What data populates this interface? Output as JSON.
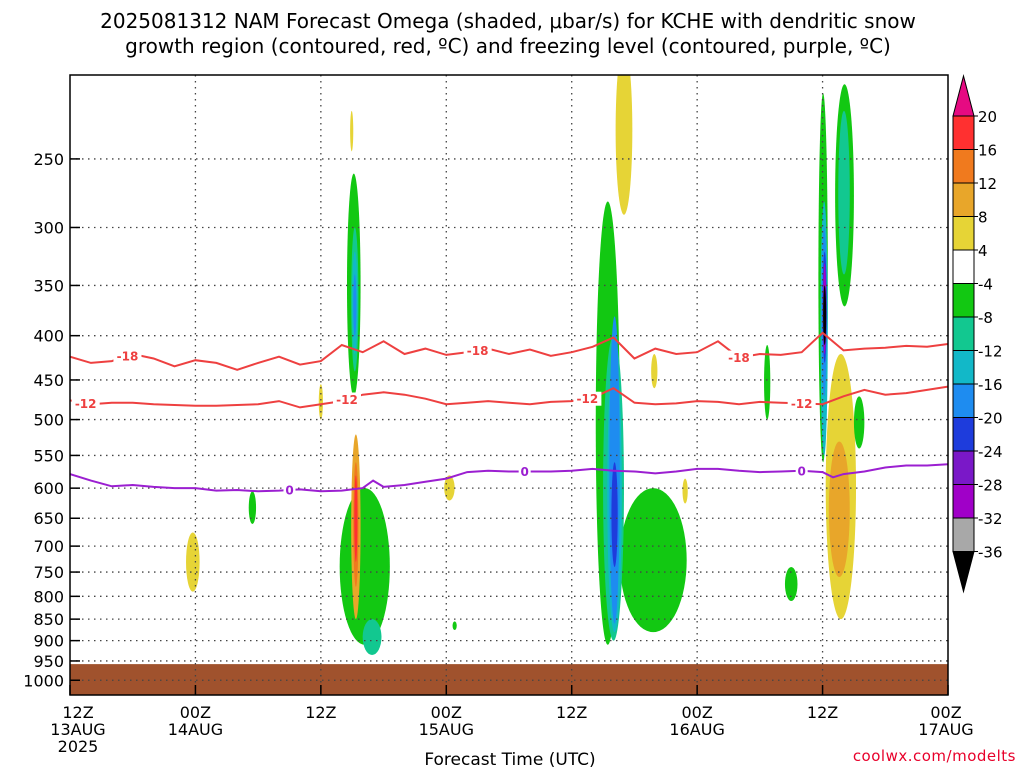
{
  "title_line1": "2025081312 NAM Forecast Omega (shaded, μbar/s) for KCHE with dendritic snow",
  "title_line2": "growth region (contoured, red, ºC) and freezing level (contoured, purple, ºC)",
  "credit": "coolwx.com/modelts",
  "chart_data": {
    "type": "heatmap",
    "xlabel": "Forecast Time (UTC)",
    "x_range_hours": [
      0,
      84
    ],
    "y_range_mb": [
      200,
      1040
    ],
    "y_log_scale": true,
    "grid": true,
    "x_ticks": [
      {
        "hour": 0,
        "line1": "12Z",
        "line2": "13AUG",
        "line3": "2025"
      },
      {
        "hour": 12,
        "line1": "00Z",
        "line2": "14AUG",
        "line3": ""
      },
      {
        "hour": 24,
        "line1": "12Z",
        "line2": "",
        "line3": ""
      },
      {
        "hour": 36,
        "line1": "00Z",
        "line2": "15AUG",
        "line3": ""
      },
      {
        "hour": 48,
        "line1": "12Z",
        "line2": "",
        "line3": ""
      },
      {
        "hour": 60,
        "line1": "00Z",
        "line2": "16AUG",
        "line3": ""
      },
      {
        "hour": 72,
        "line1": "12Z",
        "line2": "",
        "line3": ""
      },
      {
        "hour": 84,
        "line1": "00Z",
        "line2": "17AUG",
        "line3": ""
      }
    ],
    "y_ticks": [
      250,
      300,
      350,
      400,
      450,
      500,
      550,
      600,
      650,
      700,
      750,
      800,
      850,
      900,
      950,
      1000
    ],
    "colorbar": {
      "labels": [
        "20",
        "16",
        "12",
        "8",
        "4",
        "-4",
        "-8",
        "-12",
        "-16",
        "-20",
        "-24",
        "-28",
        "-32",
        "-36"
      ],
      "colors": [
        "#ff3030",
        "#f07a1e",
        "#e8a62a",
        "#e6d436",
        "#ffffff",
        "#12c812",
        "#12c890",
        "#12b8c8",
        "#1e8cf0",
        "#1e3cdc",
        "#7a18c8",
        "#a000c8",
        "#a8a8a8"
      ],
      "top_color": "#e60a82",
      "bottom_color": "#000000"
    },
    "ground_color": "#a0522d",
    "contours": [
      {
        "label": "-18",
        "color": "#ee4040",
        "points": [
          [
            0,
            423
          ],
          [
            2,
            430
          ],
          [
            4,
            428
          ],
          [
            6,
            420
          ],
          [
            8,
            425
          ],
          [
            10,
            434
          ],
          [
            12,
            427
          ],
          [
            14,
            430
          ],
          [
            16,
            438
          ],
          [
            18,
            430
          ],
          [
            20,
            423
          ],
          [
            22,
            432
          ],
          [
            24,
            428
          ],
          [
            26,
            410
          ],
          [
            28,
            418
          ],
          [
            30,
            406
          ],
          [
            32,
            420
          ],
          [
            34,
            414
          ],
          [
            36,
            421
          ],
          [
            38,
            418
          ],
          [
            40,
            414
          ],
          [
            42,
            420
          ],
          [
            44,
            415
          ],
          [
            46,
            422
          ],
          [
            48,
            418
          ],
          [
            50,
            412
          ],
          [
            52,
            402
          ],
          [
            54,
            425
          ],
          [
            56,
            414
          ],
          [
            58,
            420
          ],
          [
            60,
            418
          ],
          [
            62,
            406
          ],
          [
            64,
            424
          ],
          [
            66,
            420
          ],
          [
            68,
            421
          ],
          [
            70,
            418
          ],
          [
            72,
            397
          ],
          [
            74,
            416
          ],
          [
            76,
            414
          ],
          [
            78,
            413
          ],
          [
            80,
            411
          ],
          [
            82,
            412
          ],
          [
            84,
            409
          ]
        ],
        "label_hours": [
          5.5,
          39,
          64
        ]
      },
      {
        "label": "-12",
        "color": "#ee4040",
        "points": [
          [
            0,
            475
          ],
          [
            2,
            480
          ],
          [
            4,
            478
          ],
          [
            6,
            478
          ],
          [
            8,
            480
          ],
          [
            10,
            481
          ],
          [
            12,
            482
          ],
          [
            14,
            482
          ],
          [
            16,
            481
          ],
          [
            18,
            480
          ],
          [
            20,
            476
          ],
          [
            22,
            484
          ],
          [
            24,
            480
          ],
          [
            26,
            476
          ],
          [
            28,
            468
          ],
          [
            30,
            465
          ],
          [
            32,
            468
          ],
          [
            34,
            473
          ],
          [
            36,
            480
          ],
          [
            38,
            478
          ],
          [
            40,
            476
          ],
          [
            42,
            478
          ],
          [
            44,
            480
          ],
          [
            46,
            477
          ],
          [
            48,
            476
          ],
          [
            50,
            472
          ],
          [
            52,
            460
          ],
          [
            54,
            478
          ],
          [
            56,
            480
          ],
          [
            58,
            479
          ],
          [
            60,
            476
          ],
          [
            62,
            477
          ],
          [
            64,
            480
          ],
          [
            66,
            477
          ],
          [
            68,
            478
          ],
          [
            70,
            479
          ],
          [
            72,
            480
          ],
          [
            74,
            470
          ],
          [
            76,
            462
          ],
          [
            78,
            468
          ],
          [
            80,
            466
          ],
          [
            82,
            462
          ],
          [
            84,
            458
          ]
        ],
        "label_hours": [
          1.5,
          26.5,
          49.5,
          70
        ]
      },
      {
        "label": "0",
        "color": "#9b1fd1",
        "points": [
          [
            0,
            578
          ],
          [
            2,
            588
          ],
          [
            4,
            597
          ],
          [
            6,
            595
          ],
          [
            8,
            598
          ],
          [
            10,
            600
          ],
          [
            12,
            600
          ],
          [
            14,
            604
          ],
          [
            16,
            603
          ],
          [
            18,
            605
          ],
          [
            20,
            604
          ],
          [
            22,
            602
          ],
          [
            24,
            605
          ],
          [
            26,
            604
          ],
          [
            28,
            600
          ],
          [
            29,
            588
          ],
          [
            30,
            598
          ],
          [
            32,
            595
          ],
          [
            34,
            590
          ],
          [
            36,
            585
          ],
          [
            38,
            575
          ],
          [
            40,
            573
          ],
          [
            42,
            574
          ],
          [
            44,
            574
          ],
          [
            46,
            574
          ],
          [
            48,
            573
          ],
          [
            50,
            570
          ],
          [
            52,
            573
          ],
          [
            54,
            574
          ],
          [
            56,
            577
          ],
          [
            58,
            574
          ],
          [
            60,
            570
          ],
          [
            62,
            570
          ],
          [
            64,
            573
          ],
          [
            66,
            575
          ],
          [
            68,
            574
          ],
          [
            70,
            573
          ],
          [
            72,
            575
          ],
          [
            73,
            583
          ],
          [
            74,
            578
          ],
          [
            76,
            574
          ],
          [
            78,
            568
          ],
          [
            80,
            565
          ],
          [
            82,
            565
          ],
          [
            84,
            563
          ]
        ],
        "label_hours": [
          21,
          43.5,
          70
        ]
      }
    ],
    "omega_regions": [
      {
        "level": 4,
        "color": "#e6d436",
        "x": [
          26.8,
          27.1
        ],
        "p": [
          220,
          245
        ]
      },
      {
        "level": 4,
        "color": "#e6d436",
        "x": [
          23.8,
          24.2
        ],
        "p": [
          455,
          500
        ]
      },
      {
        "level": 4,
        "color": "#e6d436",
        "x": [
          11.1,
          12.4
        ],
        "p": [
          675,
          790
        ]
      },
      {
        "level": 4,
        "color": "#e6d436",
        "x": [
          35.8,
          36.8
        ],
        "p": [
          580,
          620
        ]
      },
      {
        "level": 4,
        "color": "#e6d436",
        "x": [
          52.2,
          53.8
        ],
        "p": [
          185,
          290
        ]
      },
      {
        "level": 4,
        "color": "#e6d436",
        "x": [
          55.6,
          56.2
        ],
        "p": [
          420,
          460
        ]
      },
      {
        "level": 4,
        "color": "#e6d436",
        "x": [
          58.6,
          59.1
        ],
        "p": [
          585,
          625
        ]
      },
      {
        "level": 4,
        "color": "#e6d436",
        "x": [
          72.3,
          75.2
        ],
        "p": [
          420,
          850
        ]
      },
      {
        "level": -4,
        "color": "#12c812",
        "x": [
          26.5,
          27.8
        ],
        "p": [
          260,
          470
        ]
      },
      {
        "level": -4,
        "color": "#12c812",
        "x": [
          25.8,
          30.6
        ],
        "p": [
          600,
          910
        ]
      },
      {
        "level": -4,
        "color": "#12c812",
        "x": [
          17.1,
          17.8
        ],
        "p": [
          605,
          660
        ]
      },
      {
        "level": -4,
        "color": "#12c812",
        "x": [
          36.6,
          37.0
        ],
        "p": [
          855,
          875
        ]
      },
      {
        "level": -4,
        "color": "#12c812",
        "x": [
          50.3,
          52.6
        ],
        "p": [
          280,
          910
        ]
      },
      {
        "level": -4,
        "color": "#12c812",
        "x": [
          52.6,
          59.0
        ],
        "p": [
          600,
          880
        ]
      },
      {
        "level": -4,
        "color": "#12c812",
        "x": [
          66.4,
          67.0
        ],
        "p": [
          410,
          500
        ]
      },
      {
        "level": -4,
        "color": "#12c812",
        "x": [
          68.4,
          69.6
        ],
        "p": [
          740,
          810
        ]
      },
      {
        "level": -4,
        "color": "#12c812",
        "x": [
          71.6,
          72.5
        ],
        "p": [
          210,
          560
        ]
      },
      {
        "level": -4,
        "color": "#12c812",
        "x": [
          73.2,
          75.0
        ],
        "p": [
          205,
          370
        ]
      },
      {
        "level": -4,
        "color": "#12c812",
        "x": [
          75.0,
          76.0
        ],
        "p": [
          470,
          540
        ]
      },
      {
        "level": -8,
        "color": "#12c890",
        "x": [
          26.9,
          27.6
        ],
        "p": [
          300,
          440
        ]
      },
      {
        "level": -8,
        "color": "#12c890",
        "x": [
          28.0,
          29.8
        ],
        "p": [
          850,
          935
        ]
      },
      {
        "level": -8,
        "color": "#12c890",
        "x": [
          51.0,
          53.0
        ],
        "p": [
          400,
          900
        ]
      },
      {
        "level": -8,
        "color": "#12c890",
        "x": [
          73.5,
          74.6
        ],
        "p": [
          220,
          340
        ]
      },
      {
        "level": -12,
        "color": "#12b8c8",
        "x": [
          27.0,
          27.5
        ],
        "p": [
          320,
          420
        ]
      },
      {
        "level": -12,
        "color": "#12b8c8",
        "x": [
          51.4,
          52.8
        ],
        "p": [
          420,
          880
        ]
      },
      {
        "level": -12,
        "color": "#12b8c8",
        "x": [
          71.8,
          72.5
        ],
        "p": [
          280,
          550
        ]
      },
      {
        "level": -16,
        "color": "#1e8cf0",
        "x": [
          27.1,
          27.4
        ],
        "p": [
          340,
          400
        ]
      },
      {
        "level": -16,
        "color": "#1e8cf0",
        "x": [
          51.6,
          52.6
        ],
        "p": [
          380,
          860
        ]
      },
      {
        "level": -16,
        "color": "#1e8cf0",
        "x": [
          71.9,
          72.4
        ],
        "p": [
          300,
          470
        ]
      },
      {
        "level": -20,
        "color": "#1e3cdc",
        "x": [
          51.8,
          52.4
        ],
        "p": [
          560,
          740
        ]
      },
      {
        "level": -20,
        "color": "#1e3cdc",
        "x": [
          72.0,
          72.4
        ],
        "p": [
          320,
          430
        ]
      },
      {
        "level": -28,
        "color": "#a000c8",
        "x": [
          72.05,
          72.35
        ],
        "p": [
          330,
          420
        ]
      },
      {
        "level": -36,
        "color": "#000000",
        "x": [
          72.12,
          72.28
        ],
        "p": [
          350,
          410
        ]
      },
      {
        "level": 8,
        "color": "#e8a62a",
        "x": [
          26.9,
          27.8
        ],
        "p": [
          520,
          850
        ]
      },
      {
        "level": 8,
        "color": "#e8a62a",
        "x": [
          72.6,
          74.6
        ],
        "p": [
          530,
          760
        ]
      },
      {
        "level": 12,
        "color": "#f07a1e",
        "x": [
          27.1,
          27.6
        ],
        "p": [
          560,
          780
        ]
      },
      {
        "level": 16,
        "color": "#ff3030",
        "x": [
          27.2,
          27.5
        ],
        "p": [
          580,
          730
        ]
      }
    ]
  }
}
